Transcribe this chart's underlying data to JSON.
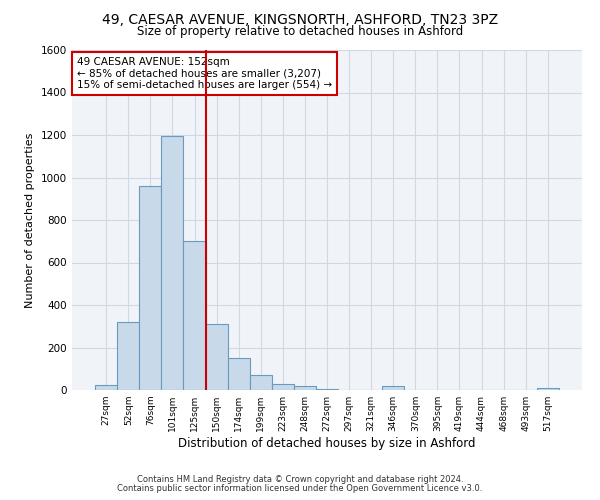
{
  "title_line1": "49, CAESAR AVENUE, KINGSNORTH, ASHFORD, TN23 3PZ",
  "title_line2": "Size of property relative to detached houses in Ashford",
  "xlabel": "Distribution of detached houses by size in Ashford",
  "ylabel": "Number of detached properties",
  "footer_line1": "Contains HM Land Registry data © Crown copyright and database right 2024.",
  "footer_line2": "Contains public sector information licensed under the Open Government Licence v3.0.",
  "annotation_line1": "49 CAESAR AVENUE: 152sqm",
  "annotation_line2": "← 85% of detached houses are smaller (3,207)",
  "annotation_line3": "15% of semi-detached houses are larger (554) →",
  "bar_color": "#c8d9ea",
  "bar_edge_color": "#6a9bbf",
  "vline_color": "#cc0000",
  "annotation_box_edge_color": "#cc0000",
  "background_color": "#ffffff",
  "plot_bg_color": "#f0f4f9",
  "grid_color": "#d0d8e4",
  "categories": [
    "27sqm",
    "52sqm",
    "76sqm",
    "101sqm",
    "125sqm",
    "150sqm",
    "174sqm",
    "199sqm",
    "223sqm",
    "248sqm",
    "272sqm",
    "297sqm",
    "321sqm",
    "346sqm",
    "370sqm",
    "395sqm",
    "419sqm",
    "444sqm",
    "468sqm",
    "493sqm",
    "517sqm"
  ],
  "values": [
    25,
    320,
    960,
    1195,
    700,
    310,
    150,
    70,
    30,
    18,
    5,
    0,
    0,
    18,
    0,
    0,
    0,
    0,
    0,
    0,
    10
  ],
  "ylim": [
    0,
    1600
  ],
  "yticks": [
    0,
    200,
    400,
    600,
    800,
    1000,
    1200,
    1400,
    1600
  ],
  "vline_position": 4.5
}
